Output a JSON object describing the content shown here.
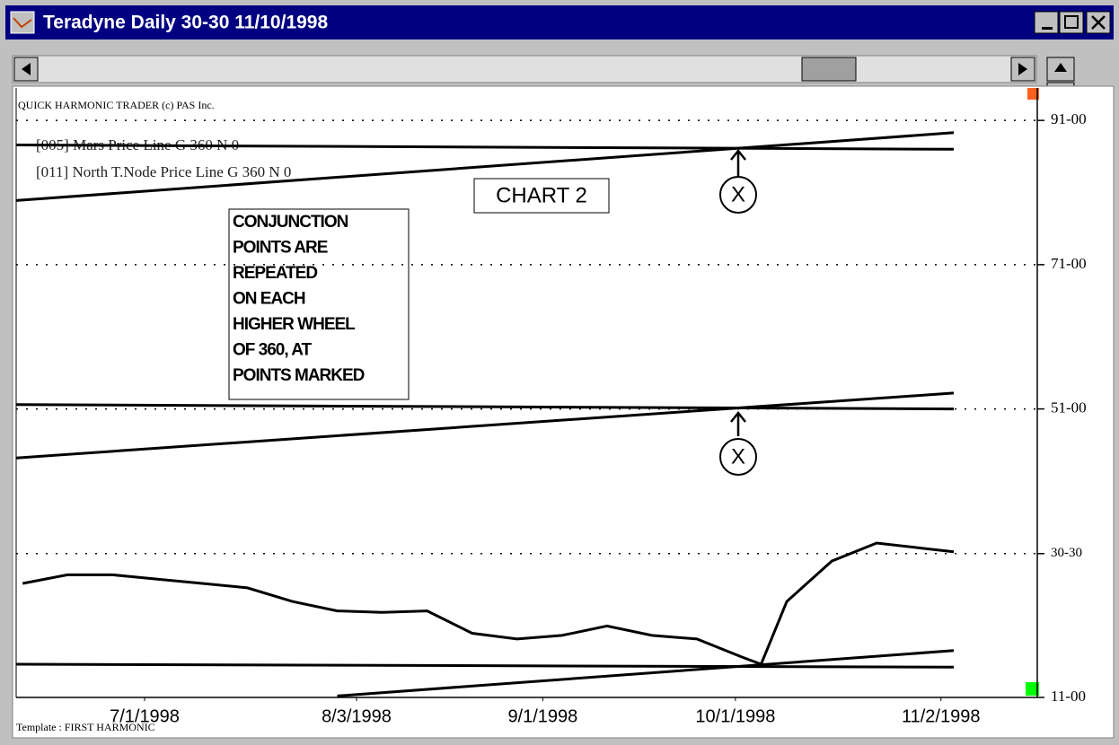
{
  "window": {
    "title": "Teradyne Daily 30-30 11/10/1998"
  },
  "chart_data": {
    "type": "line",
    "header": "QUICK HARMONIC TRADER (c) PAS Inc.",
    "footer": "Template : FIRST HARMONIC",
    "chart_label": "CHART 2",
    "note_lines": [
      "CONJUNCTION",
      "POINTS ARE",
      "REPEATED",
      "ON EACH",
      "HIGHER WHEEL",
      "OF 360, AT",
      "POINTS MARKED"
    ],
    "markers": [
      "X",
      "X"
    ],
    "xlim": [
      "6/11/1998",
      "11/17/1998"
    ],
    "xticks": [
      "7/1/1998",
      "8/3/1998",
      "9/1/1998",
      "10/1/1998",
      "11/2/1998"
    ],
    "ylim": [
      11,
      95.5
    ],
    "yticks": [
      {
        "value": 91,
        "label": "91-00"
      },
      {
        "value": 71,
        "label": "71-00"
      },
      {
        "value": 51,
        "label": "51-00"
      },
      {
        "value": 30.9375,
        "label": "30-30"
      },
      {
        "value": 11,
        "label": "11-00"
      }
    ],
    "grid": true,
    "series": [
      {
        "name": "Teradyne",
        "color": "#000000",
        "x": [
          "6/12/1998",
          "6/19/1998",
          "6/26/1998",
          "7/3/1998",
          "7/10/1998",
          "7/17/1998",
          "7/24/1998",
          "7/31/1998",
          "8/7/1998",
          "8/14/1998",
          "8/21/1998",
          "8/28/1998",
          "9/4/1998",
          "9/11/1998",
          "9/18/1998",
          "9/25/1998",
          "10/2/1998",
          "10/5/1998",
          "10/9/1998",
          "10/16/1998",
          "10/23/1998",
          "10/30/1998",
          "11/4/1998"
        ],
        "values": [
          26.8,
          28.0,
          28.0,
          27.4,
          26.8,
          26.2,
          24.3,
          23.0,
          22.8,
          23.0,
          19.9,
          19.1,
          19.6,
          20.9,
          19.6,
          19.1,
          16.6,
          15.6,
          24.3,
          29.9,
          32.4,
          31.7,
          31.2
        ]
      },
      {
        "name": "[005] Mars Price Line G 360 N 0",
        "color": "#000000",
        "segments": [
          {
            "x": [
              "6/11/1998",
              "11/4/1998"
            ],
            "values": [
              87.6,
              87.0
            ]
          },
          {
            "x": [
              "6/11/1998",
              "11/4/1998"
            ],
            "values": [
              51.6,
              51.0
            ]
          },
          {
            "x": [
              "6/11/1998",
              "11/4/1998"
            ],
            "values": [
              15.6,
              15.2
            ]
          }
        ]
      },
      {
        "name": "[011] North T.Node Price Line G 360 N 0",
        "color": "#000000",
        "segments": [
          {
            "x": [
              "6/11/1998",
              "11/4/1998"
            ],
            "values": [
              79.9,
              89.3
            ]
          },
          {
            "x": [
              "6/11/1998",
              "11/4/1998"
            ],
            "values": [
              44.2,
              53.2
            ]
          },
          {
            "x": [
              "7/31/1998",
              "11/4/1998"
            ],
            "values": [
              11.2,
              17.5
            ]
          }
        ]
      }
    ]
  }
}
